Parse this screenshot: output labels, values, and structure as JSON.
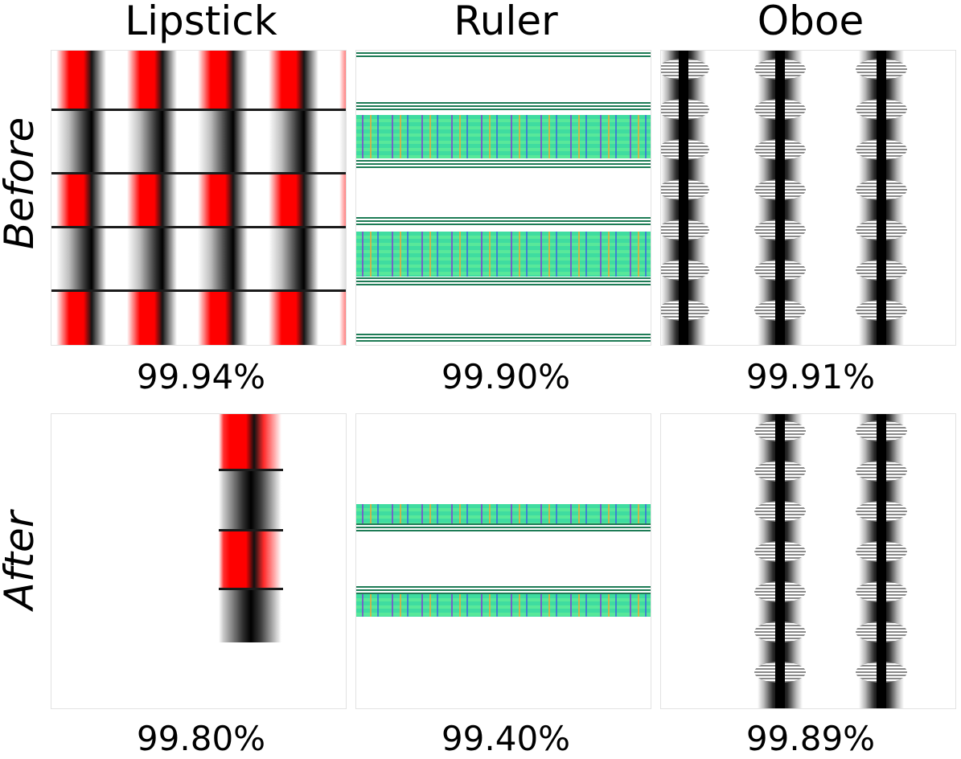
{
  "columns": [
    {
      "title": "Lipstick"
    },
    {
      "title": "Ruler"
    },
    {
      "title": "Oboe"
    }
  ],
  "rows": [
    {
      "label": "Before",
      "scores": [
        "99.94%",
        "99.90%",
        "99.91%"
      ]
    },
    {
      "label": "After",
      "scores": [
        "99.80%",
        "99.40%",
        "99.89%"
      ]
    }
  ]
}
